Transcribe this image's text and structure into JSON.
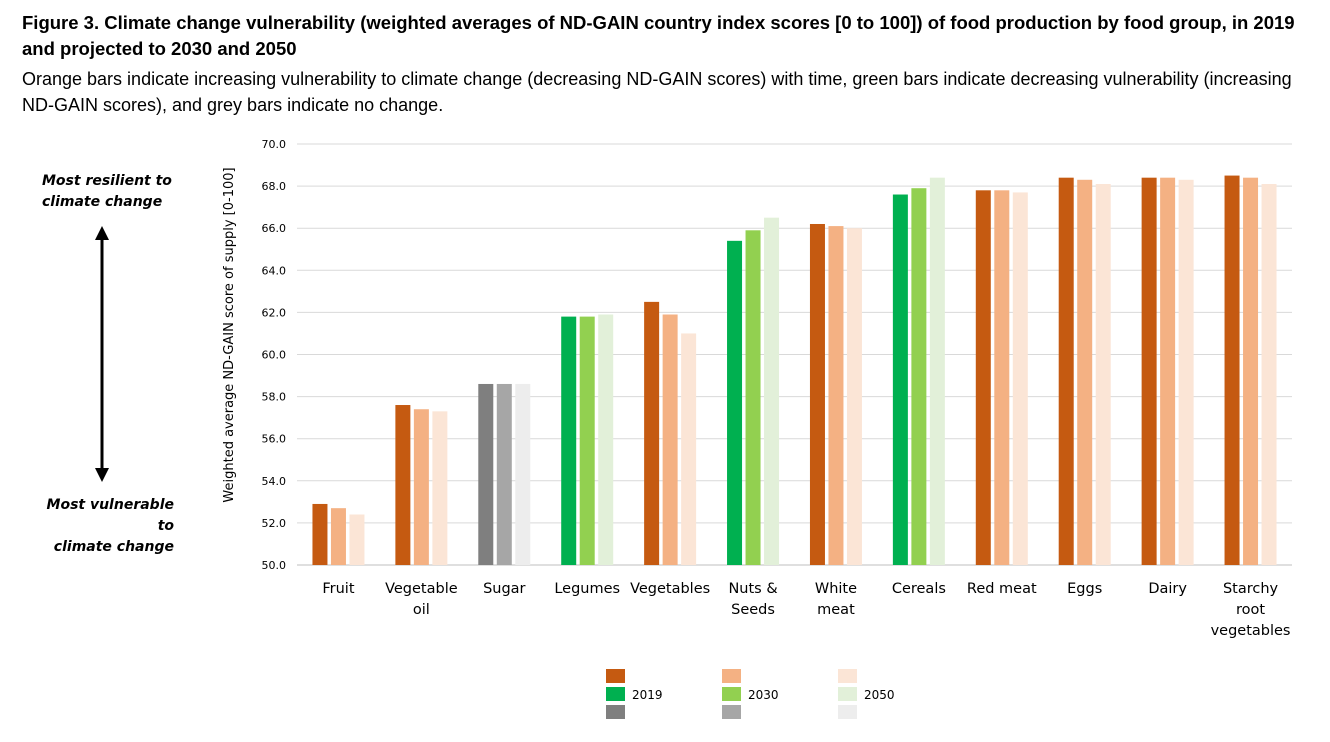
{
  "title": "Figure 3. Climate change vulnerability (weighted averages of ND-GAIN country index scores [0 to 100]) of food production by food group, in 2019 and projected to 2030 and 2050",
  "subtitle": "Orange bars indicate increasing vulnerability to climate change (decreasing ND-GAIN scores) with time, green bars indicate decreasing vulnerability (increasing ND-GAIN scores), and grey bars indicate no change.",
  "side_labels": {
    "top_line1": "Most resilient to",
    "top_line2": "climate change",
    "bottom_line1": "Most vulnerable to",
    "bottom_line2": "climate change"
  },
  "colors": {
    "orange": [
      "#c55a11",
      "#f4b183",
      "#fbe5d6"
    ],
    "green": [
      "#00b050",
      "#92d050",
      "#e2f0d9"
    ],
    "grey": [
      "#7f7f7f",
      "#a6a6a6",
      "#ededed"
    ],
    "grid": "#d9d9d9",
    "axis": "#bfbfbf"
  },
  "chart_data": {
    "type": "bar",
    "ylabel": "Weighted average ND-GAIN score of supply [0-100]",
    "ylim": [
      50,
      70
    ],
    "yticks": [
      "50.0",
      "52.0",
      "54.0",
      "56.0",
      "58.0",
      "60.0",
      "62.0",
      "64.0",
      "66.0",
      "68.0",
      "70.0"
    ],
    "grid": true,
    "legend_position": "bottom",
    "categories": [
      [
        "Fruit"
      ],
      [
        "Vegetable",
        "oil"
      ],
      [
        "Sugar"
      ],
      [
        "Legumes"
      ],
      [
        "Vegetables"
      ],
      [
        "Nuts &",
        "Seeds"
      ],
      [
        "White",
        "meat"
      ],
      [
        "Cereals"
      ],
      [
        "Red meat"
      ],
      [
        "Eggs"
      ],
      [
        "Dairy"
      ],
      [
        "Starchy",
        "root",
        "vegetables"
      ]
    ],
    "color_groups": [
      "orange",
      "orange",
      "grey",
      "green",
      "orange",
      "green",
      "orange",
      "green",
      "orange",
      "orange",
      "orange",
      "orange"
    ],
    "series": [
      {
        "name": "2019",
        "values": [
          52.9,
          57.6,
          58.6,
          61.8,
          62.5,
          65.4,
          66.2,
          67.6,
          67.8,
          68.4,
          68.4,
          68.5
        ]
      },
      {
        "name": "2030",
        "values": [
          52.7,
          57.4,
          58.6,
          61.8,
          61.9,
          65.9,
          66.1,
          67.9,
          67.8,
          68.3,
          68.4,
          68.4
        ]
      },
      {
        "name": "2050",
        "values": [
          52.4,
          57.3,
          58.6,
          61.9,
          61.0,
          66.5,
          66.0,
          68.4,
          67.7,
          68.1,
          68.3,
          68.1
        ]
      }
    ]
  }
}
